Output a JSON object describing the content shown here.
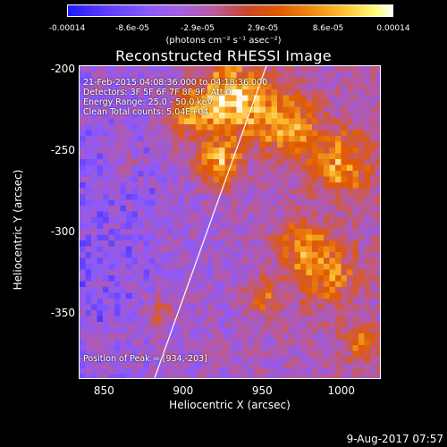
{
  "colorbar": {
    "ticks": [
      "-0.00014",
      "-8.6e-05",
      "-2.9e-05",
      "2.9e-05",
      "8.6e-05",
      "0.00014"
    ],
    "unit": "(photons cm⁻² s⁻¹ asec⁻²)"
  },
  "title": "Reconstructed RHESSI Image",
  "annotations": {
    "time": "21-Feb-2015 04:08:36.000 to 04:18:36.000",
    "detectors": "Detectors: 3F 5F 6F 7F 8F 9F, Att 0",
    "energy": "Energy Range: 25.0 - 50.0 keV",
    "method": "Clean    Total counts: 5.04E+04",
    "peak": "Position of Peak = [934,-203]"
  },
  "axes": {
    "xlabel": "Heliocentric X (arcsec)",
    "ylabel": "Heliocentric Y (arcsec)",
    "xticks": [
      "850",
      "900",
      "950",
      "1000"
    ],
    "yticks": [
      "-200",
      "-250",
      "-300",
      "-350"
    ]
  },
  "footer": {
    "date": "9-Aug-2017 07:57"
  },
  "chart_data": {
    "type": "heatmap",
    "title": "Reconstructed RHESSI Image",
    "xlabel": "Heliocentric X (arcsec)",
    "ylabel": "Heliocentric Y (arcsec)",
    "xlim": [
      834,
      1025
    ],
    "ylim": [
      -390,
      -197
    ],
    "zlim": [
      -0.00014,
      0.00014
    ],
    "peak": [
      934,
      -203
    ],
    "colormap": [
      "#1d1aff",
      "#8a5aff",
      "#b85aa0",
      "#e05a00",
      "#ffc030",
      "#ffffff"
    ],
    "limb_line": [
      [
        881,
        -390
      ],
      [
        952,
        -197
      ]
    ]
  }
}
